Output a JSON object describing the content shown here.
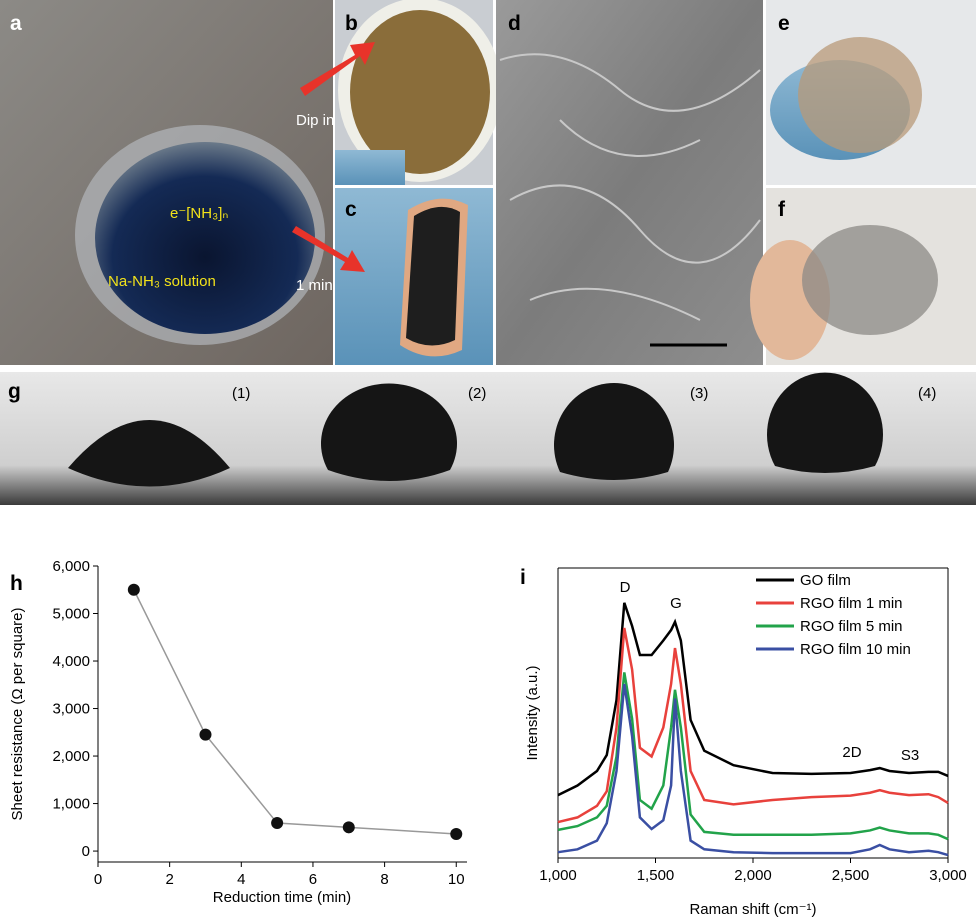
{
  "panels": [
    {
      "label": "a",
      "texts": [
        "e⁻[NH₃]ₙ",
        "Na-NH₃ solution"
      ]
    },
    {
      "label": "b",
      "texts": [
        "Dip in"
      ]
    },
    {
      "label": "c",
      "texts": [
        "1 min"
      ]
    },
    {
      "label": "d"
    },
    {
      "label": "e"
    },
    {
      "label": "f"
    },
    {
      "label": "g",
      "texts": [
        "(1)",
        "(2)",
        "(3)",
        "(4)"
      ]
    }
  ],
  "chart_data": [
    {
      "type": "line",
      "label": "h",
      "x_label": "Reduction time (min)",
      "y_label": "Sheet resistance (Ω per square)",
      "x": [
        1,
        3,
        5,
        7,
        10
      ],
      "values": [
        5500,
        2450,
        590,
        500,
        360
      ],
      "color": "#999999",
      "marker_color": "#111111",
      "xlim": [
        0,
        10.3
      ],
      "ylim": [
        -230,
        6000
      ],
      "xticks": [
        0,
        2,
        4,
        6,
        8,
        10
      ],
      "yticks": [
        0,
        {
          "value": 1000,
          "label": "1,000"
        },
        {
          "value": 2000,
          "label": "2,000"
        },
        {
          "value": 3000,
          "label": "3,000"
        },
        {
          "value": 4000,
          "label": "4,000"
        },
        {
          "value": 5000,
          "label": "5,000"
        },
        {
          "value": 6000,
          "label": "6,000"
        }
      ]
    },
    {
      "type": "line",
      "label": "i",
      "x_label": "Raman shift (cm⁻¹)",
      "y_label": "Intensity (a.u.)",
      "x": [
        1000,
        1100,
        1200,
        1250,
        1300,
        1340,
        1380,
        1420,
        1480,
        1540,
        1580,
        1600,
        1630,
        1680,
        1750,
        1900,
        2100,
        2300,
        2500,
        2600,
        2650,
        2700,
        2800,
        2900,
        2950,
        3000
      ],
      "series": [
        {
          "name": "GO film",
          "color": "#000000",
          "values": [
            21.7,
            25,
            30,
            35.5,
            54.5,
            88,
            80,
            70,
            70,
            75,
            78.6,
            81.4,
            75,
            47.6,
            37,
            32,
            29.3,
            29,
            29.3,
            30.3,
            31,
            30,
            29.3,
            29.7,
            29.7,
            28.3
          ]
        },
        {
          "name": "RGO film 1 min",
          "color": "#e8413c",
          "values": [
            12.4,
            14,
            18,
            23,
            45,
            79.3,
            65,
            38,
            35,
            45,
            60,
            72.4,
            60,
            30,
            20,
            18.5,
            20,
            21,
            21.5,
            22.5,
            23.4,
            22.5,
            21.7,
            22,
            21,
            19
          ]
        },
        {
          "name": "RGO film 5 min",
          "color": "#22a34a",
          "values": [
            9.7,
            11,
            14,
            18,
            35,
            64,
            48,
            20,
            17,
            25,
            45,
            58,
            45,
            15,
            9,
            8,
            8,
            8,
            8.5,
            9.5,
            10.5,
            9.5,
            8.5,
            8.5,
            8,
            6.5
          ]
        },
        {
          "name": "RGO film 10 min",
          "color": "#3a4fa3",
          "values": [
            2,
            3,
            6,
            12,
            30,
            60,
            42,
            14,
            10,
            13,
            25,
            55,
            30,
            6,
            3,
            2,
            1.7,
            1.7,
            1.7,
            3,
            4.5,
            3,
            2,
            2.5,
            2,
            1
          ]
        }
      ],
      "annotations": [
        "D",
        "G",
        "2D",
        "S3"
      ],
      "xlim": [
        1000,
        3000
      ],
      "ylim": [
        0,
        100
      ],
      "xticks": [
        {
          "value": 1000,
          "label": "1,000"
        },
        {
          "value": 1500,
          "label": "1,500"
        },
        {
          "value": 2000,
          "label": "2,000"
        },
        {
          "value": 2500,
          "label": "2,500"
        },
        {
          "value": 3000,
          "label": "3,000"
        }
      ],
      "legend": "upper right"
    }
  ]
}
